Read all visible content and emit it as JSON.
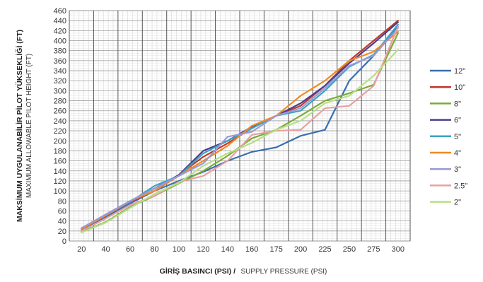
{
  "chart_data": {
    "type": "line",
    "ylabel_primary": "MAKSİMUM UYGULANABİLİR PİLOT YÜKSEKLİĞİ (FT)",
    "ylabel_secondary": "MAXIMUM ALLOWABLE PILOT HEIGHT (FT)",
    "xlabel_primary": "GİRİŞ BASINCI (PSI) /",
    "xlabel_secondary": "SUPPLY PRESSURE (PSI)",
    "categories": [
      "20",
      "40",
      "60",
      "80",
      "100",
      "120",
      "140",
      "160",
      "175",
      "200",
      "225",
      "250",
      "275",
      "300"
    ],
    "ylim": [
      0,
      460
    ],
    "ystep": 20,
    "grid": "horizontal-minor, vertical-major",
    "legend_position": "right",
    "series": [
      {
        "name": "12\"",
        "color": "#3a6fb0",
        "values": [
          22,
          48,
          75,
          100,
          120,
          138,
          160,
          178,
          187,
          210,
          222,
          320,
          370,
          428
        ]
      },
      {
        "name": "10\"",
        "color": "#c0392b",
        "values": [
          25,
          52,
          78,
          100,
          132,
          168,
          195,
          225,
          250,
          270,
          310,
          360,
          400,
          440
        ]
      },
      {
        "name": "8\"",
        "color": "#7aab3a",
        "values": [
          18,
          38,
          68,
          90,
          115,
          140,
          170,
          205,
          222,
          250,
          280,
          295,
          312,
          415
        ]
      },
      {
        "name": "6\"",
        "color": "#4b3f8e",
        "values": [
          25,
          53,
          80,
          105,
          132,
          180,
          200,
          228,
          250,
          275,
          310,
          355,
          395,
          437
        ]
      },
      {
        "name": "5\"",
        "color": "#3aa4c4",
        "values": [
          24,
          53,
          78,
          110,
          130,
          175,
          200,
          225,
          250,
          260,
          300,
          348,
          372,
          432
        ]
      },
      {
        "name": "4\"",
        "color": "#f08a24",
        "values": [
          24,
          51,
          80,
          100,
          130,
          160,
          190,
          230,
          250,
          290,
          320,
          360,
          378,
          418
        ]
      },
      {
        "name": "3\"",
        "color": "#9a9ad8",
        "values": [
          26,
          53,
          80,
          105,
          130,
          155,
          208,
          218,
          250,
          265,
          305,
          350,
          370,
          425
        ]
      },
      {
        "name": "2.5\"",
        "color": "#e8a0a0",
        "values": [
          20,
          45,
          72,
          90,
          118,
          130,
          160,
          212,
          220,
          222,
          265,
          270,
          310,
          428
        ]
      },
      {
        "name": "2\"",
        "color": "#b8df88",
        "values": [
          17,
          37,
          66,
          94,
          116,
          150,
          175,
          196,
          222,
          240,
          275,
          290,
          330,
          382
        ]
      }
    ]
  }
}
